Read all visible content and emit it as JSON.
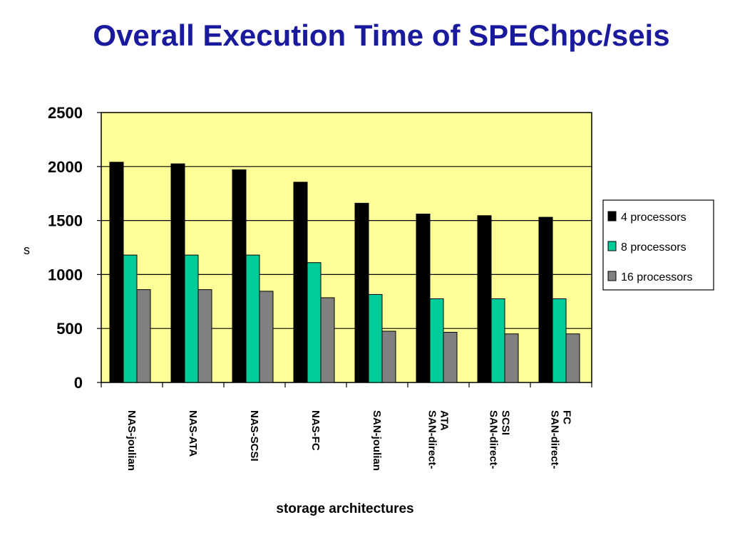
{
  "chart_data": {
    "type": "bar",
    "title": "Overall Execution Time of SPEChpc/seis",
    "xlabel": "storage architectures",
    "ylabel": "s",
    "ylim": [
      0,
      2500
    ],
    "yticks": [
      0,
      500,
      1000,
      1500,
      2000,
      2500
    ],
    "grid": true,
    "legend_position": "right",
    "plot_background": "#ffff99",
    "categories": [
      [
        "NAS-joulian"
      ],
      [
        "NAS-ATA"
      ],
      [
        "NAS-SCSI"
      ],
      [
        "NAS-FC"
      ],
      [
        "SAN-joulian"
      ],
      [
        "SAN-direct-",
        "ATA"
      ],
      [
        "SAN-direct-",
        "SCSI"
      ],
      [
        "SAN-direct-",
        "FC"
      ]
    ],
    "series": [
      {
        "name": "4 processors",
        "color": "#000000",
        "values": [
          2040,
          2025,
          1970,
          1855,
          1660,
          1560,
          1545,
          1530
        ]
      },
      {
        "name": "8 processors",
        "color": "#00cc99",
        "values": [
          1180,
          1180,
          1180,
          1110,
          815,
          775,
          775,
          775
        ]
      },
      {
        "name": "16 processors",
        "color": "#808080",
        "values": [
          860,
          860,
          845,
          785,
          475,
          465,
          450,
          450
        ]
      }
    ]
  }
}
